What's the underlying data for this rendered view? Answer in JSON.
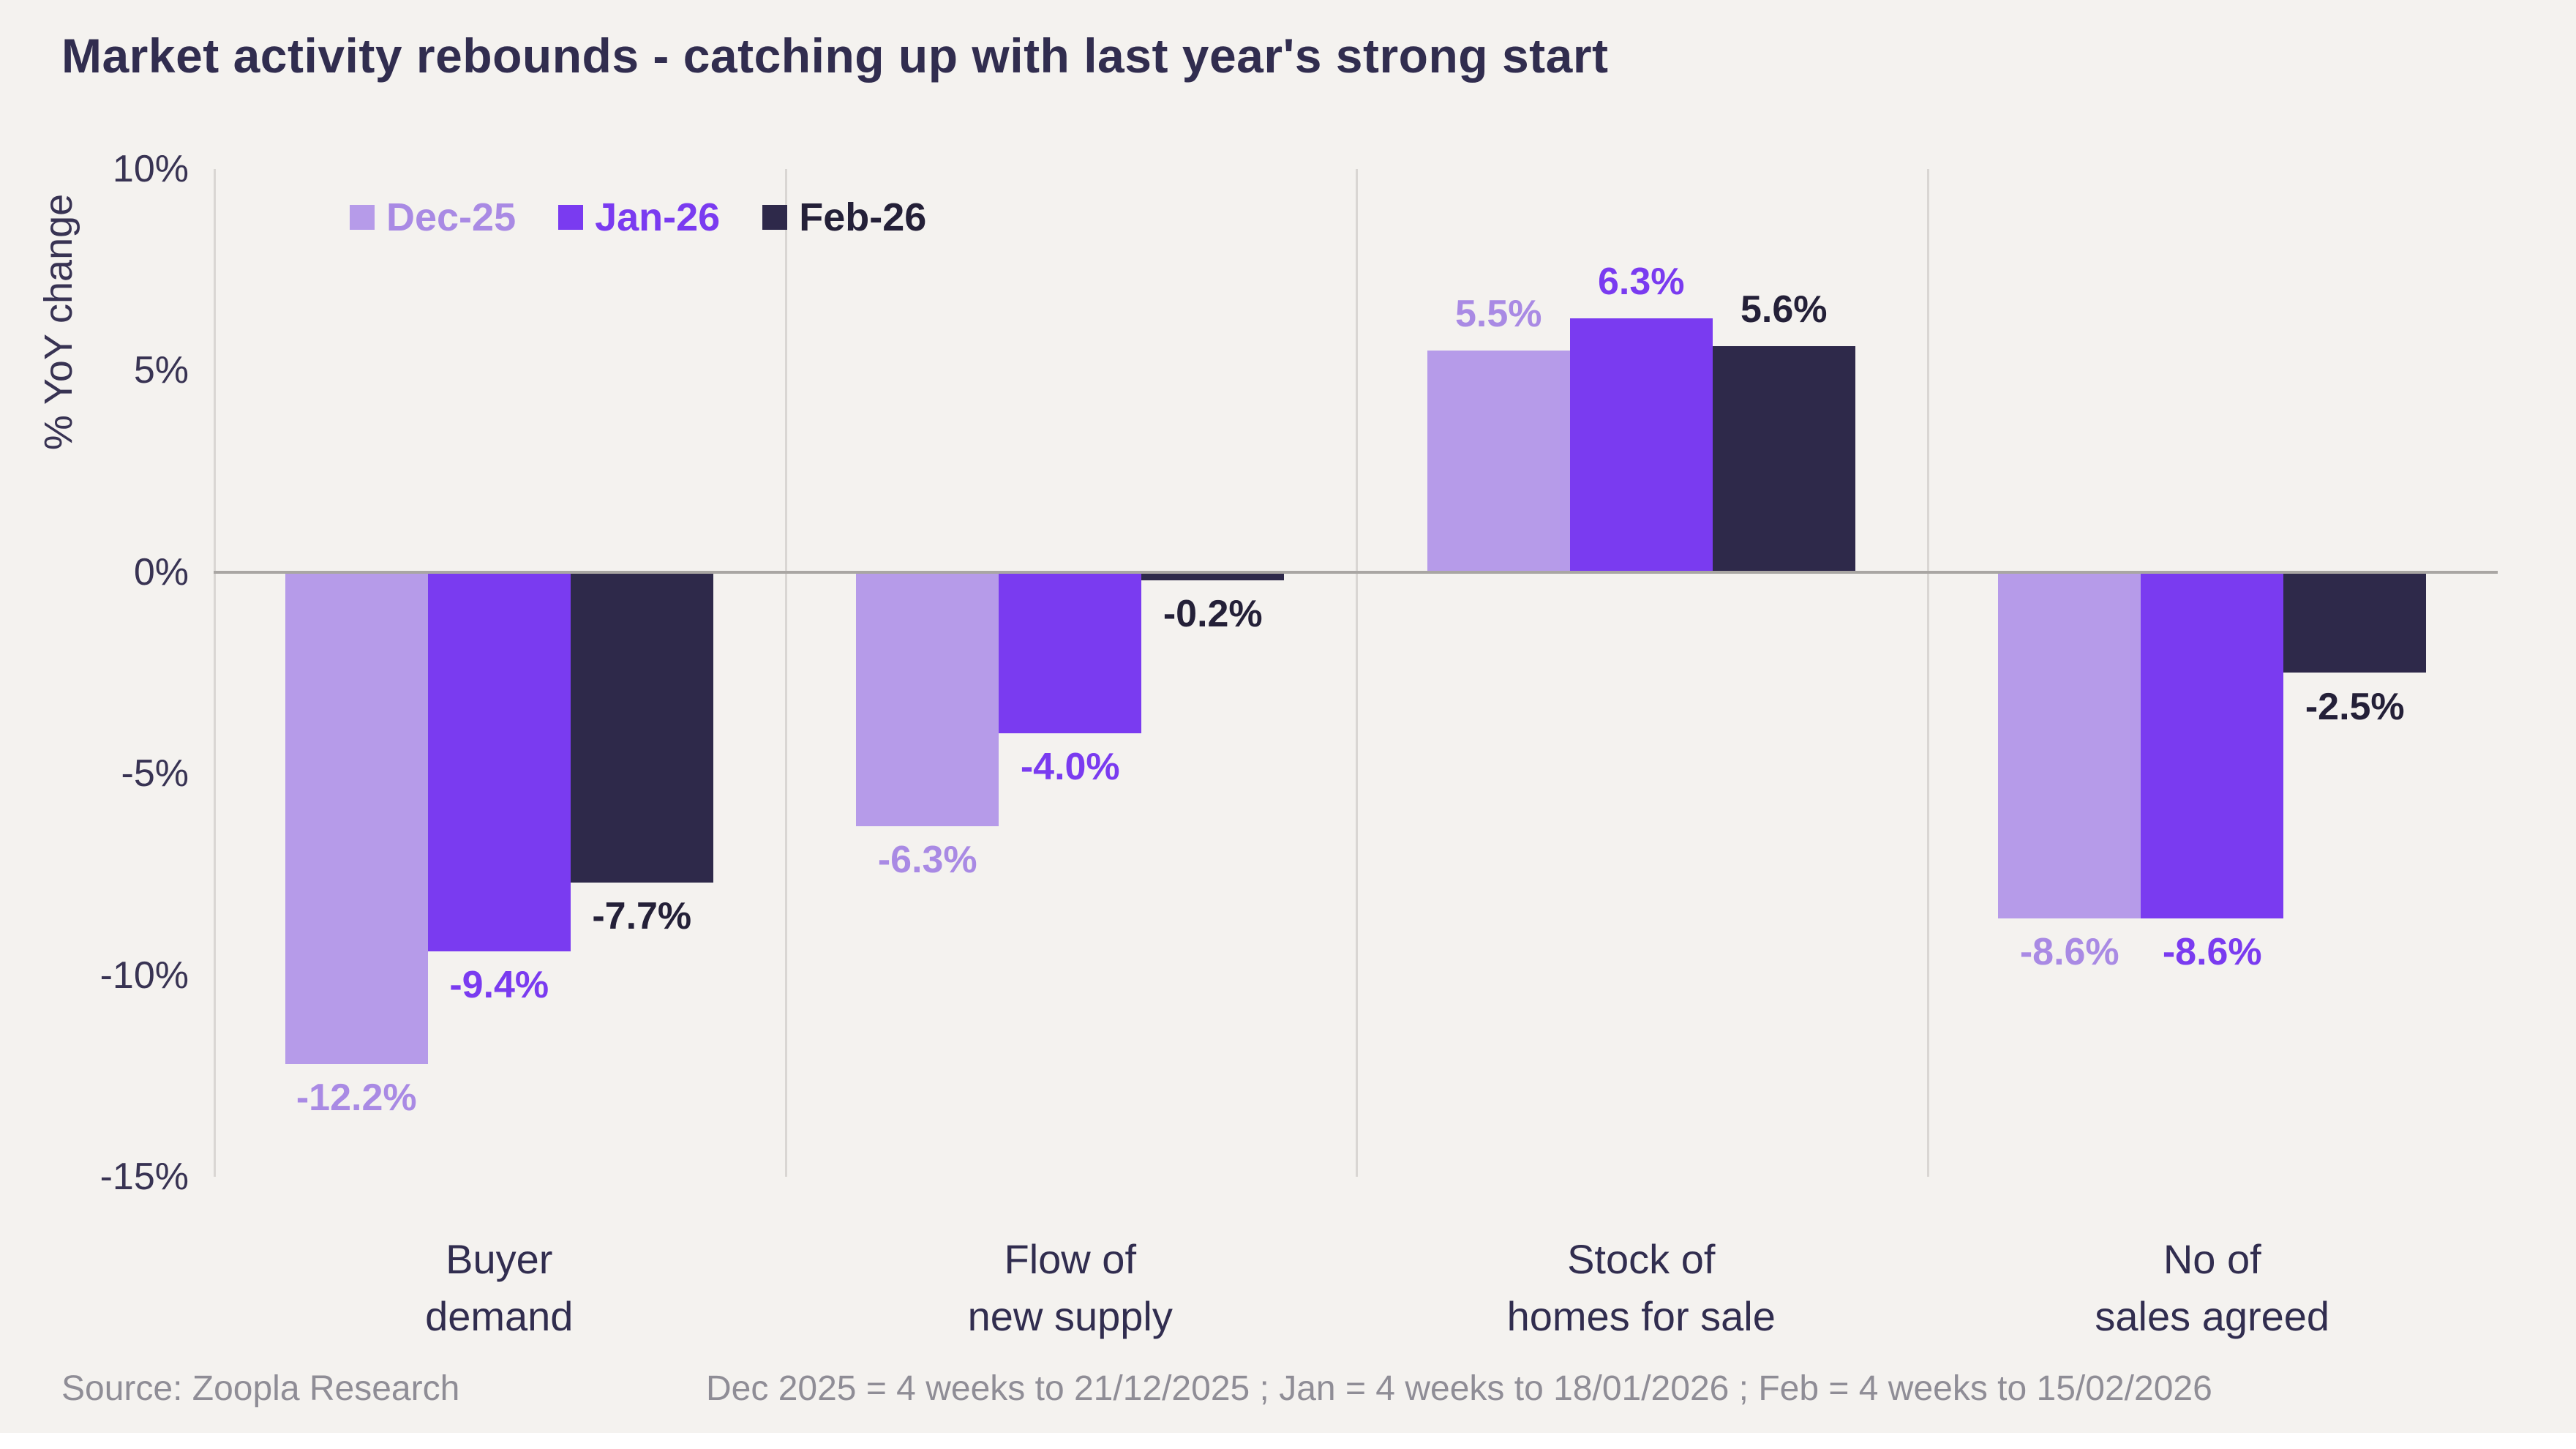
{
  "title": "Market activity rebounds - catching up with last year's strong start",
  "colors": {
    "background": "#f4f2ef",
    "zero_line": "#a9a6a3",
    "grid_line": "#d9d6d3",
    "text_dark": "#312d4f",
    "tick_text": "#383353",
    "footer_text": "#8f8d96",
    "bottom_strip": "#ffffff"
  },
  "chart_data": {
    "type": "bar",
    "title": "Market activity rebounds - catching up with last year's strong start",
    "ylabel": "% YoY change",
    "ylim": [
      -15,
      10
    ],
    "yticks": [
      10,
      5,
      0,
      -5,
      -10,
      -15
    ],
    "ytick_labels": [
      "10%",
      "5%",
      "0%",
      "-5%",
      "-10%",
      "-15%"
    ],
    "grid": "vertical-separators",
    "legend_position": "top-left",
    "categories": [
      [
        "Buyer",
        "demand"
      ],
      [
        "Flow of",
        "new supply"
      ],
      [
        "Stock of",
        "homes for sale"
      ],
      [
        "No of",
        "sales agreed"
      ]
    ],
    "series": [
      {
        "name": "Dec-25",
        "color": "#b69be9",
        "label_color": "#a98ae4",
        "values": [
          -12.2,
          -6.3,
          5.5,
          -8.6
        ],
        "value_labels": [
          "-12.2%",
          "-6.3%",
          "5.5%",
          "-8.6%"
        ]
      },
      {
        "name": "Jan-26",
        "color": "#7a3bf0",
        "label_color": "#7a3bf0",
        "values": [
          -9.4,
          -4.0,
          6.3,
          -8.6
        ],
        "value_labels": [
          "-9.4%",
          "-4.0%",
          "6.3%",
          "-8.6%"
        ]
      },
      {
        "name": "Feb-26",
        "color": "#2e294a",
        "label_color": "#242038",
        "values": [
          -7.7,
          -0.2,
          5.6,
          -2.5
        ],
        "value_labels": [
          "-7.7%",
          "-0.2%",
          "5.6%",
          "-2.5%"
        ]
      }
    ]
  },
  "footer": {
    "source": "Source: Zoopla Research",
    "note": "Dec 2025 = 4 weeks to 21/12/2025 ; Jan = 4 weeks to 18/01/2026 ; Feb = 4 weeks to 15/02/2026"
  }
}
